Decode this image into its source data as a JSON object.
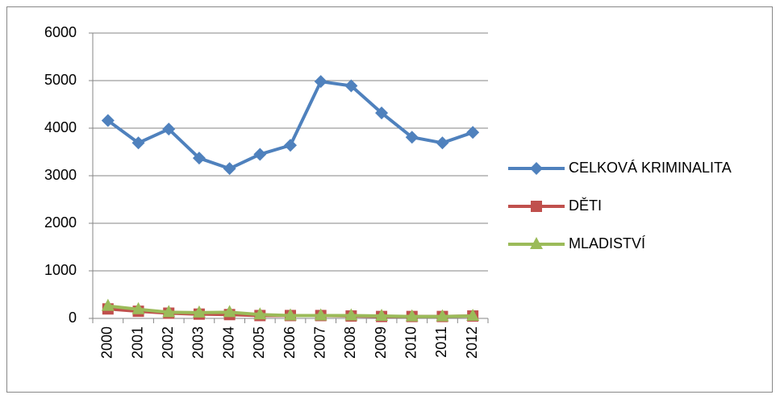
{
  "chart_data": {
    "type": "line",
    "categories": [
      "2000",
      "2001",
      "2002",
      "2003",
      "2004",
      "2005",
      "2006",
      "2007",
      "2008",
      "2009",
      "2010",
      "2011",
      "2012"
    ],
    "series": [
      {
        "name": "CELKOVÁ KRIMINALITA",
        "color": "#4f81bd",
        "marker": "diamond",
        "values": [
          4160,
          3690,
          3980,
          3370,
          3150,
          3450,
          3640,
          4980,
          4890,
          4320,
          3810,
          3690,
          3910
        ]
      },
      {
        "name": "DĚTI",
        "color": "#c0504d",
        "marker": "square",
        "values": [
          200,
          150,
          110,
          90,
          80,
          60,
          60,
          60,
          50,
          40,
          40,
          40,
          50
        ]
      },
      {
        "name": "MLADISTVÍ",
        "color": "#9bbb59",
        "marker": "triangle",
        "values": [
          260,
          190,
          130,
          120,
          130,
          80,
          60,
          60,
          60,
          50,
          40,
          40,
          50
        ]
      }
    ],
    "ylim": [
      0,
      6000
    ],
    "yticks": [
      0,
      1000,
      2000,
      3000,
      4000,
      5000,
      6000
    ],
    "grid": true,
    "legend": "right"
  }
}
